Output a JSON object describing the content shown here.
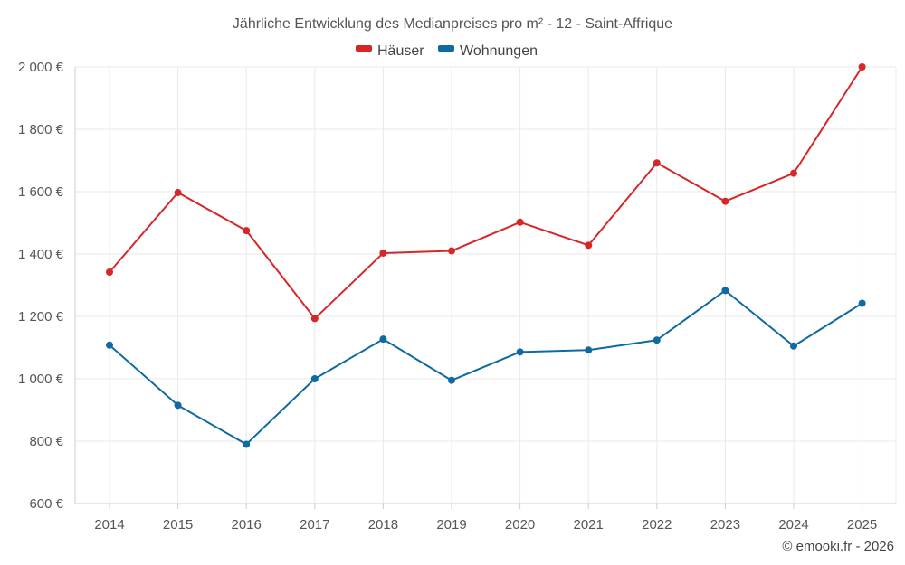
{
  "chart_data": {
    "type": "line",
    "title": "Jährliche Entwicklung des Medianpreises pro m² - 12 - Saint-Affrique",
    "xlabel": "",
    "ylabel": "",
    "categories": [
      "2014",
      "2015",
      "2016",
      "2017",
      "2018",
      "2019",
      "2020",
      "2021",
      "2022",
      "2023",
      "2024",
      "2025"
    ],
    "ylim": [
      600,
      2000
    ],
    "y_ticks": [
      600,
      800,
      1000,
      1200,
      1400,
      1600,
      1800,
      2000
    ],
    "y_tick_labels": [
      "600 €",
      "800 €",
      "1 000 €",
      "1 200 €",
      "1 400 €",
      "1 600 €",
      "1 800 €",
      "2 000 €"
    ],
    "grid": true,
    "legend_position": "top-center",
    "series": [
      {
        "name": "Häuser",
        "color": "#d62728",
        "values": [
          1342,
          1597,
          1475,
          1193,
          1403,
          1410,
          1502,
          1428,
          1692,
          1569,
          1659,
          2000
        ]
      },
      {
        "name": "Wohnungen",
        "color": "#0e6aa0",
        "values": [
          1108,
          915,
          790,
          1000,
          1127,
          995,
          1086,
          1092,
          1124,
          1283,
          1105,
          1242
        ]
      }
    ]
  },
  "credit": "© emooki.fr - 2026"
}
